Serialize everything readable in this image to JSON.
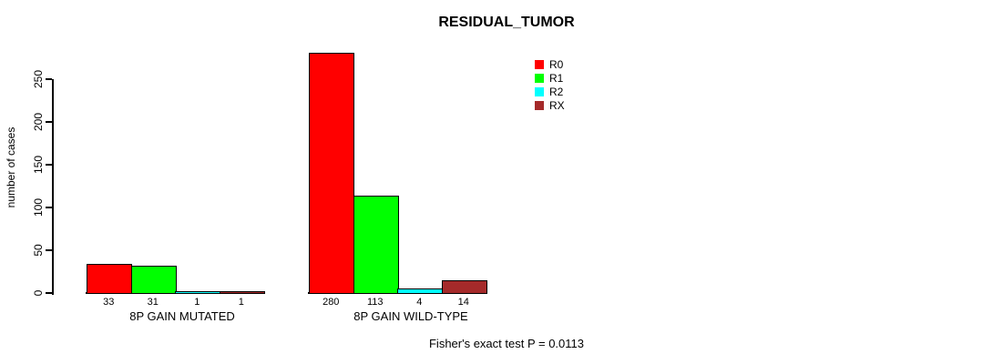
{
  "title": "RESIDUAL_TUMOR",
  "footer": "Fisher's exact test P = 0.0113",
  "chart_data": {
    "type": "bar",
    "title": "RESIDUAL_TUMOR",
    "xlabel": "",
    "ylabel": "number of cases",
    "categories": [
      "8P GAIN MUTATED",
      "8P GAIN WILD-TYPE"
    ],
    "series": [
      {
        "name": "R0",
        "color": "#ff0000",
        "values": [
          33,
          280
        ]
      },
      {
        "name": "R1",
        "color": "#00ff00",
        "values": [
          31,
          113
        ]
      },
      {
        "name": "R2",
        "color": "#00ffff",
        "values": [
          1,
          4
        ]
      },
      {
        "name": "RX",
        "color": "#a52a2a",
        "values": [
          1,
          14
        ]
      }
    ],
    "bar_value_labels": [
      [
        "33",
        "31",
        "1",
        "1"
      ],
      [
        "280",
        "113",
        "4",
        "14"
      ]
    ],
    "yticks": [
      0,
      50,
      100,
      150,
      200,
      250
    ],
    "ylim": [
      0,
      250
    ],
    "grid": false,
    "legend_position": "top-right",
    "annotation": "Fisher's exact test P = 0.0113"
  }
}
